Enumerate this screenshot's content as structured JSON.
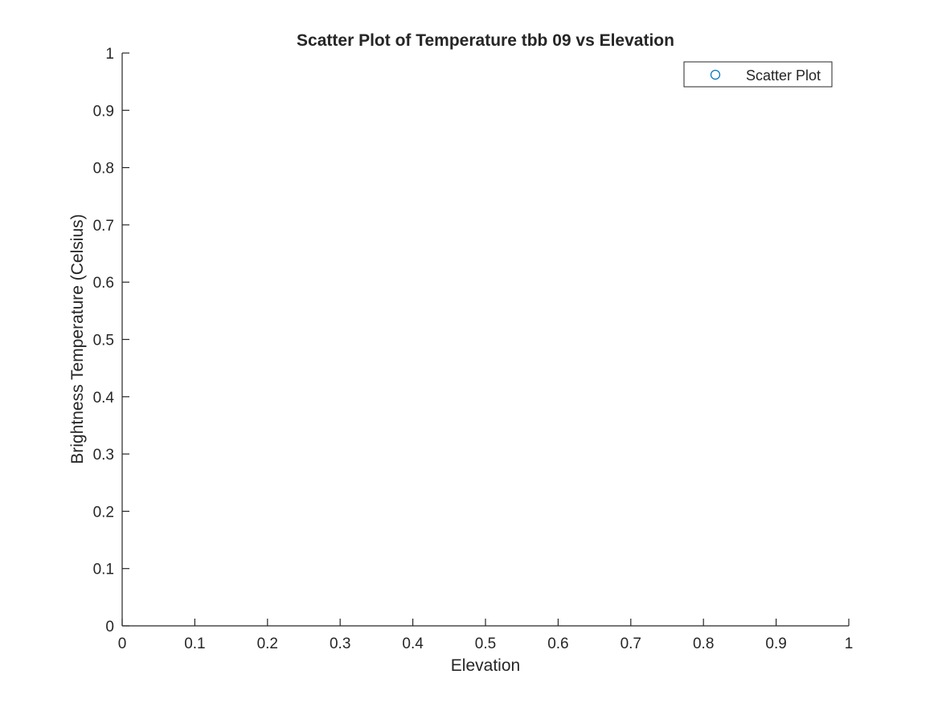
{
  "chart_data": {
    "type": "scatter",
    "title": "Scatter Plot of Temperature tbb 09 vs Elevation",
    "xlabel": "Elevation",
    "ylabel": "Brightness Temperature (Celsius)",
    "xlim": [
      0,
      1
    ],
    "ylim": [
      0,
      1
    ],
    "xticks": [
      "0",
      "0.1",
      "0.2",
      "0.3",
      "0.4",
      "0.5",
      "0.6",
      "0.7",
      "0.8",
      "0.9",
      "1"
    ],
    "yticks": [
      "0",
      "0.1",
      "0.2",
      "0.3",
      "0.4",
      "0.5",
      "0.6",
      "0.7",
      "0.8",
      "0.9",
      "1"
    ],
    "grid": false,
    "legend": {
      "position": "top-right",
      "entries": [
        "Scatter Plot"
      ]
    },
    "series": [
      {
        "name": "Scatter Plot",
        "marker": "circle",
        "color": "#0072BD",
        "x": [],
        "y": []
      }
    ]
  }
}
